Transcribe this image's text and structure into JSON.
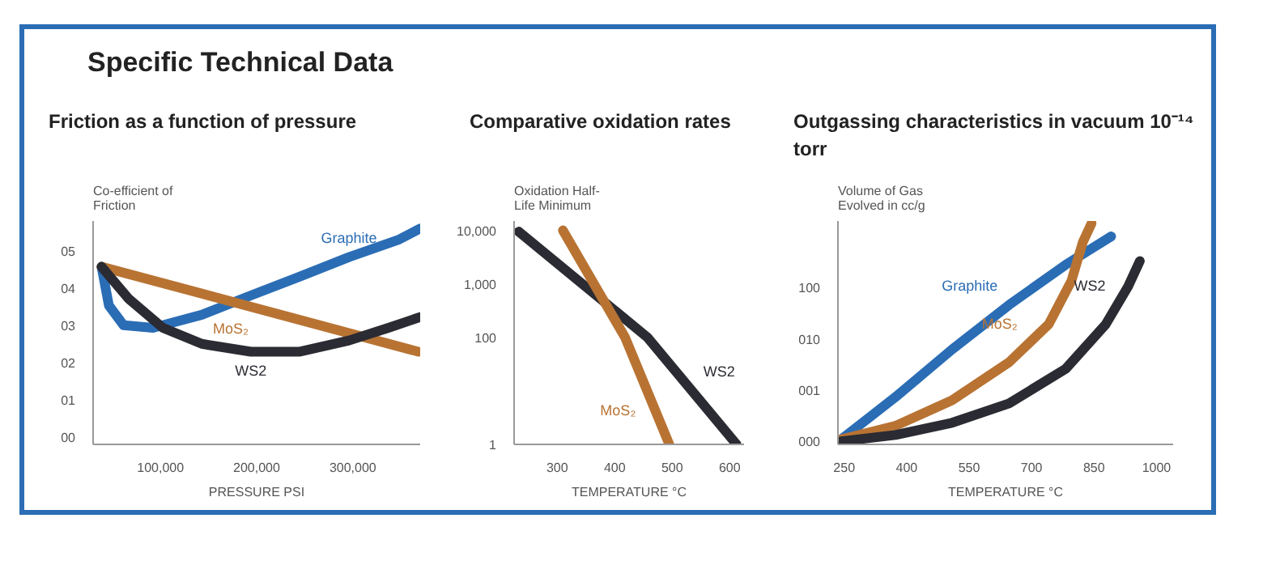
{
  "chart_data": [
    {
      "type": "other",
      "title": "Specific Technical Data"
    },
    {
      "type": "line",
      "title": "Friction as a function of pressure",
      "ylabel": "Co-efficient of Friction",
      "xlabel": "PRESSURE PSI",
      "xlim": [
        30000,
        370000
      ],
      "ylim": [
        -0.2,
        5.8
      ],
      "xticks": [
        {
          "value": 100000,
          "label": "100,000"
        },
        {
          "value": 200000,
          "label": "200,000"
        },
        {
          "value": 300000,
          "label": "300,000"
        }
      ],
      "yticks": [
        {
          "value": 0,
          "label": "00"
        },
        {
          "value": 1,
          "label": "01"
        },
        {
          "value": 2,
          "label": "02"
        },
        {
          "value": 3,
          "label": "03"
        },
        {
          "value": 4,
          "label": "04"
        },
        {
          "value": 5,
          "label": "05"
        }
      ],
      "grid": false,
      "series": [
        {
          "name": "Graphite",
          "color": "#2a6db5",
          "x": [
            38800,
            46400,
            61700,
            92300,
            143000,
            194000,
            245000,
            296000,
            347000,
            370000
          ],
          "values": [
            4.57,
            3.53,
            3.0,
            2.93,
            3.28,
            3.8,
            4.31,
            4.83,
            5.29,
            5.6
          ]
        },
        {
          "name": "MoS₂",
          "color": "#b87333",
          "x": [
            38800,
            368000
          ],
          "values": [
            4.57,
            2.29
          ]
        },
        {
          "name": "WS2",
          "color": "#2b2b33",
          "x": [
            38800,
            67000,
            102500,
            143000,
            194000,
            245000,
            296000,
            337000,
            370000
          ],
          "values": [
            4.57,
            3.71,
            2.93,
            2.5,
            2.29,
            2.29,
            2.59,
            2.93,
            3.22
          ]
        }
      ]
    },
    {
      "type": "line",
      "title": "Comparative oxidation rates",
      "ylabel": "Oxidation Half-Life Minimum",
      "xlabel": "TEMPERATURE °C",
      "log": "y",
      "xlim": [
        225,
        625
      ],
      "ylim": [
        1,
        15000
      ],
      "xticks": [
        300,
        400,
        500,
        600
      ],
      "yticks": [
        {
          "value": 1,
          "label": "1"
        },
        {
          "value": 100,
          "label": "100"
        },
        {
          "value": 1000,
          "label": "1,000"
        },
        {
          "value": 10000,
          "label": "10,000"
        }
      ],
      "grid": false,
      "series": [
        {
          "name": "WS2",
          "color": "#2b2b33",
          "x": [
            233,
            457,
            612
          ],
          "values": [
            9500,
            100,
            1
          ]
        },
        {
          "name": "MoS₂",
          "color": "#b87333",
          "x": [
            310,
            418,
            495
          ],
          "values": [
            10000,
            100,
            1
          ]
        }
      ]
    },
    {
      "type": "line",
      "title": "Outgassing characteristics in vacuum 10⁻¹⁴ torr",
      "ylabel": "Volume of Gas Evolved in cc/g",
      "xlabel": "TEMPERATURE °C",
      "log": "y",
      "xlim": [
        235,
        1040
      ],
      "ylim": [
        0.087,
        2000
      ],
      "xticks": [
        250,
        400,
        550,
        700,
        850,
        1000
      ],
      "yticks": [
        {
          "value": 0.1,
          "label": "000"
        },
        {
          "value": 1,
          "label": "001"
        },
        {
          "value": 10,
          "label": "010"
        },
        {
          "value": 100,
          "label": "100"
        }
      ],
      "grid": false,
      "series": [
        {
          "name": "Graphite",
          "color": "#2a6db5",
          "x": [
            243,
            373,
            509,
            646,
            782,
            891
          ],
          "values": [
            0.109,
            0.73,
            6.2,
            46,
            280,
            1000
          ]
        },
        {
          "name": "MoS₂",
          "color": "#b87333",
          "x": [
            243,
            373,
            509,
            646,
            741,
            796,
            823,
            844
          ],
          "values": [
            0.109,
            0.2,
            0.63,
            3.5,
            19.2,
            137,
            770,
            1800
          ]
        },
        {
          "name": "WS2",
          "color": "#2b2b33",
          "x": [
            243,
            373,
            509,
            646,
            782,
            878,
            932,
            960
          ],
          "values": [
            0.1,
            0.133,
            0.23,
            0.55,
            2.6,
            19.2,
            106,
            330
          ]
        }
      ]
    }
  ]
}
